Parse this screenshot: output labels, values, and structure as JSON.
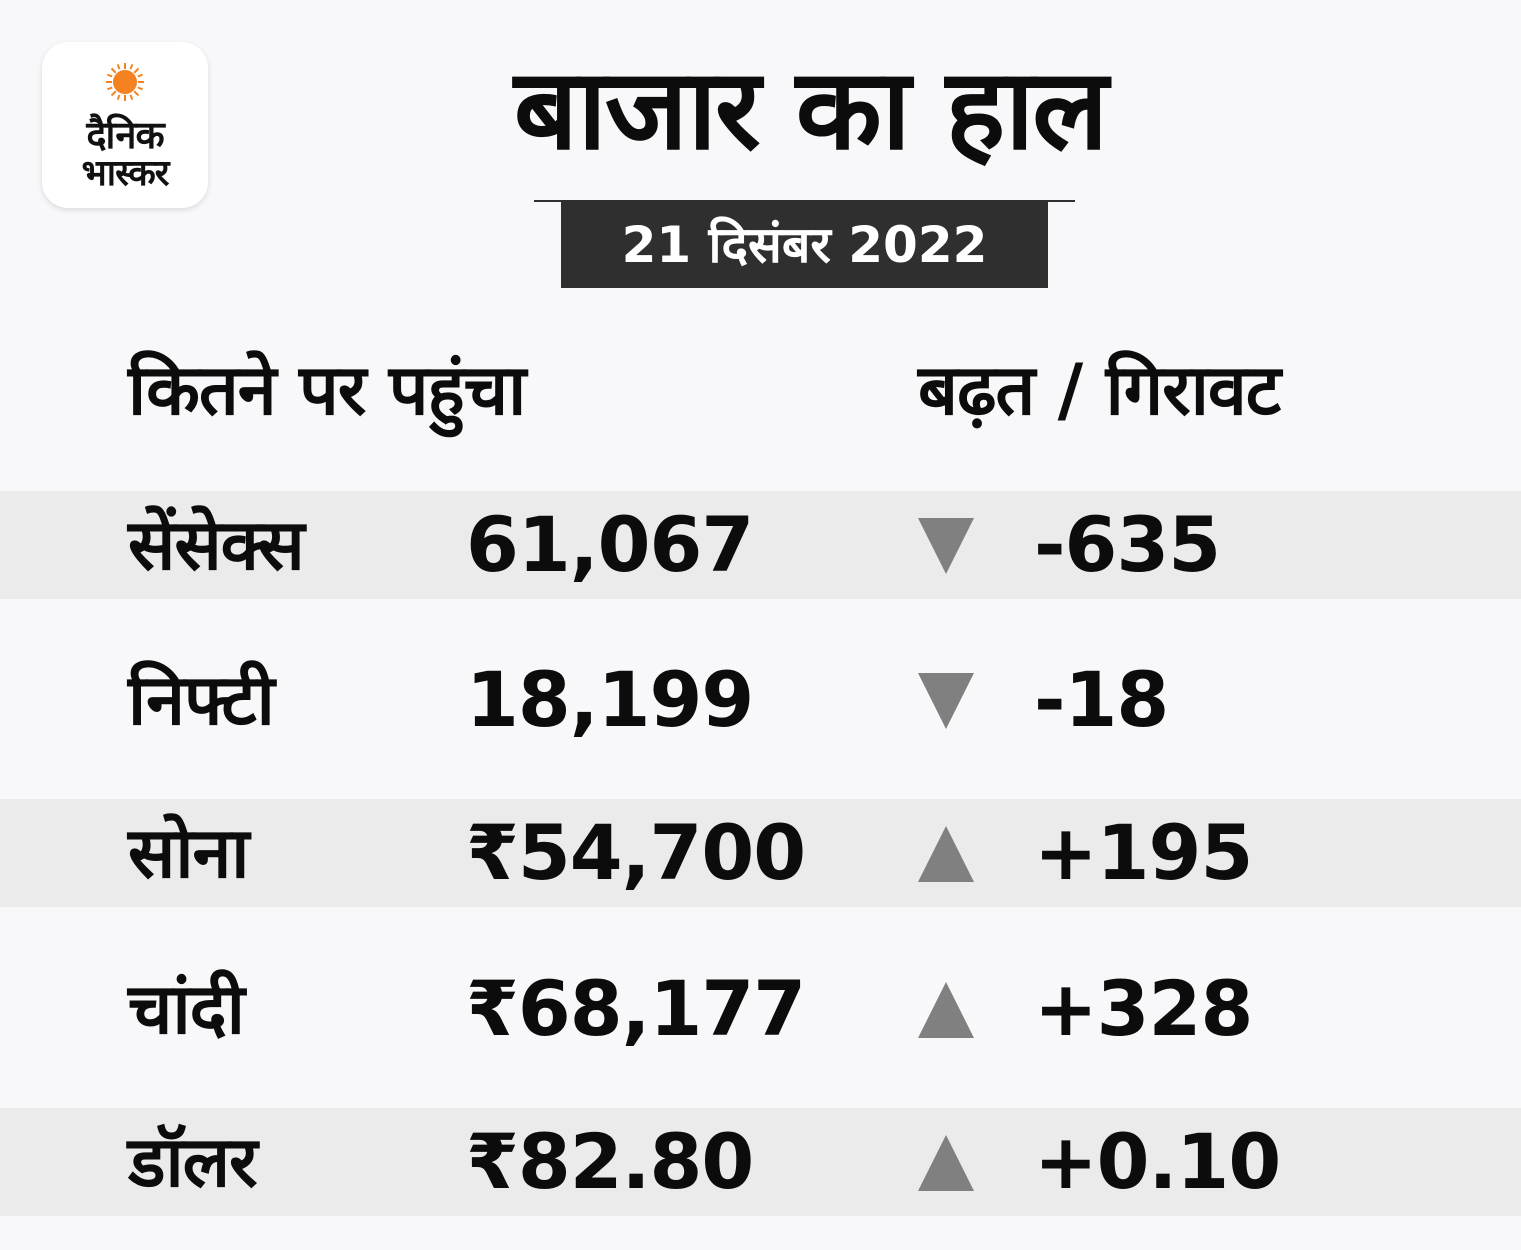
{
  "logo": {
    "line1": "दैनिक",
    "line2": "भास्कर",
    "sun_color": "#f58220"
  },
  "header": {
    "title": "बाजार का हाल",
    "date": "21 दिसंबर 2022"
  },
  "columns": {
    "left": "कितने पर पहुंचा",
    "right": "बढ़त / गिरावट"
  },
  "rows": [
    {
      "name": "सेंसेक्स",
      "value": "61,067",
      "direction": "down",
      "change": "-635"
    },
    {
      "name": "निफ्टी",
      "value": "18,199",
      "direction": "down",
      "change": "-18"
    },
    {
      "name": "सोना",
      "value": "₹54,700",
      "direction": "up",
      "change": "+195"
    },
    {
      "name": "चांदी",
      "value": "₹68,177",
      "direction": "up",
      "change": "+328"
    },
    {
      "name": "डॉलर",
      "value": "₹82.80",
      "direction": "up",
      "change": "+0.10"
    }
  ],
  "colors": {
    "background": "#f8f8fa",
    "shaded_row": "#ebebeb",
    "date_box": "#2f2f2f",
    "arrow": "#808080"
  }
}
